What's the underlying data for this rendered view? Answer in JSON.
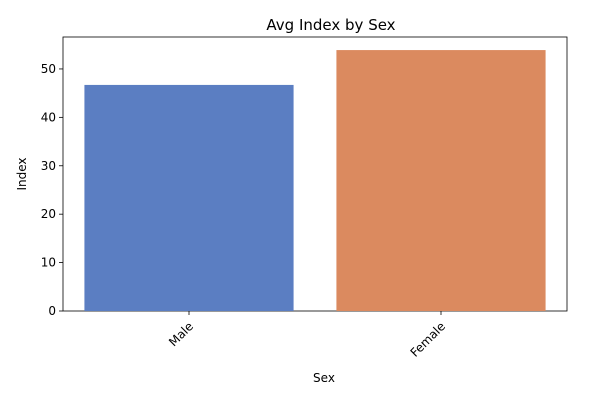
{
  "chart_data": {
    "type": "bar",
    "title": "Avg Index by Sex",
    "xlabel": "Sex",
    "ylabel": "Index",
    "categories": [
      "Male",
      "Female"
    ],
    "values": [
      46.7,
      53.9
    ],
    "colors": [
      "#5b7ec2",
      "#db8a5f"
    ],
    "ylim": [
      0,
      56.6
    ],
    "yticks": [
      0,
      10,
      20,
      30,
      40,
      50
    ],
    "grid": false,
    "xtick_rotation_deg": 45
  }
}
